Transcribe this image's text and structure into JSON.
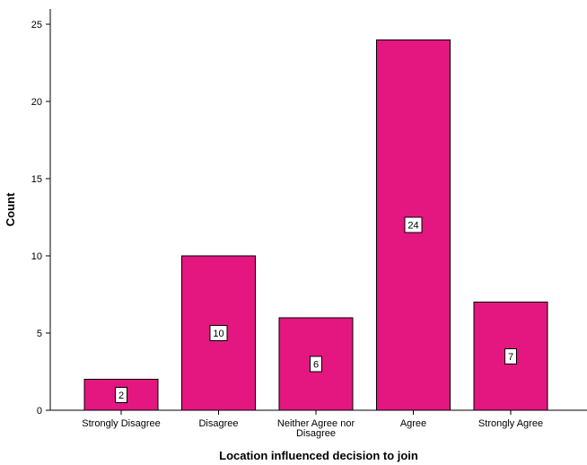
{
  "chart_data": {
    "type": "bar",
    "categories": [
      "Strongly Disagree",
      "Disagree",
      "Neither Agree nor Disagree",
      "Agree",
      "Strongly Agree"
    ],
    "values": [
      2,
      10,
      6,
      24,
      7
    ],
    "data_labels": [
      "2",
      "10",
      "6",
      "24",
      "7"
    ],
    "xlabel": "Location influenced decision to join",
    "ylabel": "Count",
    "ylim": [
      0,
      26
    ],
    "yticks": [
      0,
      5,
      10,
      15,
      20,
      25
    ],
    "bar_color": "#e3177f",
    "grid": false,
    "legend": false
  }
}
